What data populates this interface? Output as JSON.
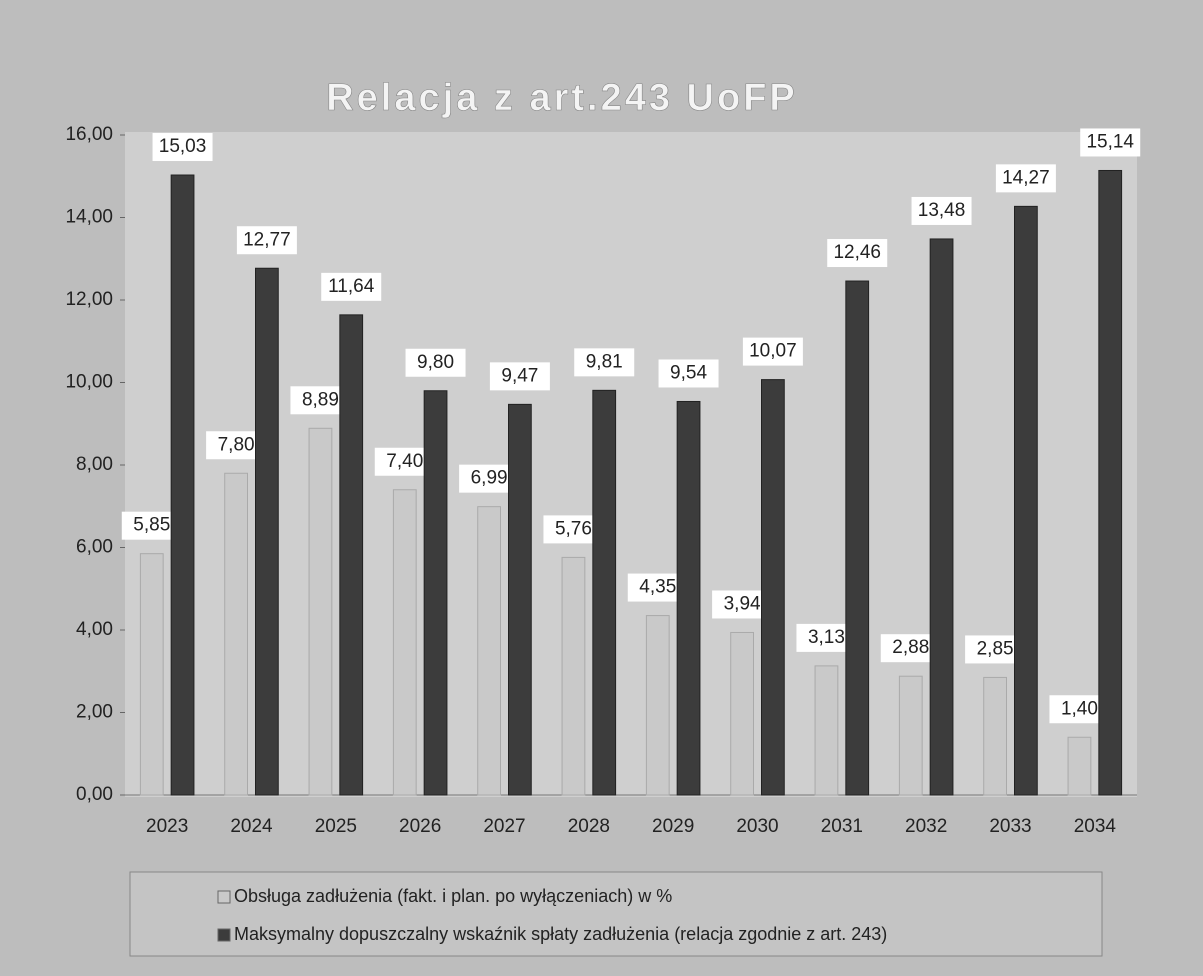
{
  "chart_data": {
    "type": "bar",
    "title": "Relacja z art.243 UoFP",
    "categories": [
      "2023",
      "2024",
      "2025",
      "2026",
      "2027",
      "2028",
      "2029",
      "2030",
      "2031",
      "2032",
      "2033",
      "2034"
    ],
    "series": [
      {
        "name": "Obsługa zadłużenia (fakt. i plan. po wyłączeniach) w %",
        "color": "#c9c9c9",
        "values": [
          5.85,
          7.8,
          8.89,
          7.4,
          6.99,
          5.76,
          4.35,
          3.94,
          3.13,
          2.88,
          2.85,
          1.4
        ],
        "value_labels": [
          "5,85",
          "7,80",
          "8,89",
          "7,40",
          "6,99",
          "5,76",
          "4,35",
          "3,94",
          "3,13",
          "2,88",
          "2,85",
          "1,40"
        ]
      },
      {
        "name": "Maksymalny dopuszczalny wskaźnik spłaty  zadłużenia (relacja zgodnie z art. 243)",
        "color": "#3c3c3c",
        "values": [
          15.03,
          12.77,
          11.64,
          9.8,
          9.47,
          9.81,
          9.54,
          10.07,
          12.46,
          13.48,
          14.27,
          15.14
        ],
        "value_labels": [
          "15,03",
          "12,77",
          "11,64",
          "9,80",
          "9,47",
          "9,81",
          "9,54",
          "10,07",
          "12,46",
          "13,48",
          "14,27",
          "15,14"
        ]
      }
    ],
    "ylim": [
      0,
      16
    ],
    "yticks": [
      {
        "value": 0,
        "label": "0,00"
      },
      {
        "value": 2,
        "label": "2,00"
      },
      {
        "value": 4,
        "label": "4,00"
      },
      {
        "value": 6,
        "label": "6,00"
      },
      {
        "value": 8,
        "label": "8,00"
      },
      {
        "value": 10,
        "label": "10,00"
      },
      {
        "value": 12,
        "label": "12,00"
      },
      {
        "value": 14,
        "label": "14,00"
      },
      {
        "value": 16,
        "label": "16,00"
      }
    ],
    "legend": "bottom"
  }
}
